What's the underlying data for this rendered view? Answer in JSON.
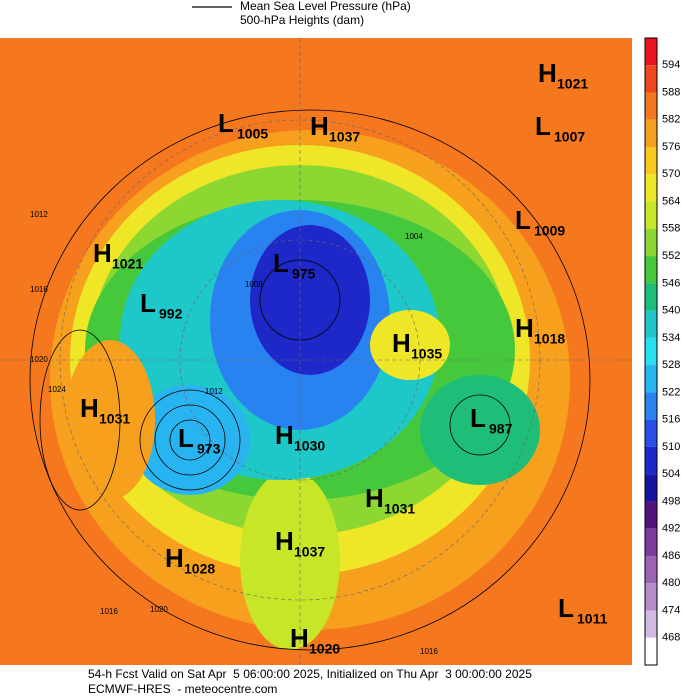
{
  "legend": {
    "line_1": "Mean Sea Level Pressure (hPa)",
    "line_2": "500-hPa Heights (dam)"
  },
  "colorbar": {
    "labels": [
      594,
      588,
      582,
      576,
      570,
      564,
      558,
      552,
      546,
      540,
      534,
      528,
      522,
      516,
      510,
      504,
      498,
      492,
      486,
      480,
      474,
      468
    ],
    "colors": [
      "#e8141e",
      "#f0461e",
      "#f5781e",
      "#f7a01e",
      "#f8c81e",
      "#f0e628",
      "#c8e628",
      "#8cd732",
      "#46c83c",
      "#1ebe78",
      "#1ec8c8",
      "#28e0f0",
      "#28b4f0",
      "#2882f0",
      "#2850e6",
      "#1e28c8",
      "#1414a0",
      "#50147d",
      "#7d3c9b",
      "#9b64b4",
      "#b48cc8",
      "#d2b9e1",
      "#ffffff"
    ]
  },
  "centers": [
    {
      "letter": "H",
      "value": 1021
    },
    {
      "letter": "L",
      "value": 1005
    },
    {
      "letter": "H",
      "value": 1037
    },
    {
      "letter": "L",
      "value": 1007
    },
    {
      "letter": "L",
      "value": 1009
    },
    {
      "letter": "H",
      "value": 1021
    },
    {
      "letter": "L",
      "value": 975
    },
    {
      "letter": "L",
      "value": 992
    },
    {
      "letter": "H",
      "value": 1018
    },
    {
      "letter": "H",
      "value": 1035
    },
    {
      "letter": "H",
      "value": 1031
    },
    {
      "letter": "L",
      "value": 987
    },
    {
      "letter": "L",
      "value": 973
    },
    {
      "letter": "H",
      "value": 1030
    },
    {
      "letter": "H",
      "value": 1031
    },
    {
      "letter": "H",
      "value": 1037
    },
    {
      "letter": "H",
      "value": 1028
    },
    {
      "letter": "L",
      "value": 1011
    },
    {
      "letter": "H",
      "value": 1020
    }
  ],
  "contour_labels": [
    1012,
    1016,
    1020,
    1024,
    1004,
    1008,
    1012,
    1016,
    1020,
    1016
  ],
  "footer": {
    "line_1": "54-h Fcst Valid on Sat Apr  5 06:00:00 2025, Initialized on Thu Apr  3 00:00:00 2025",
    "line_2": "ECMWF-HRES  - meteocentre.com"
  }
}
